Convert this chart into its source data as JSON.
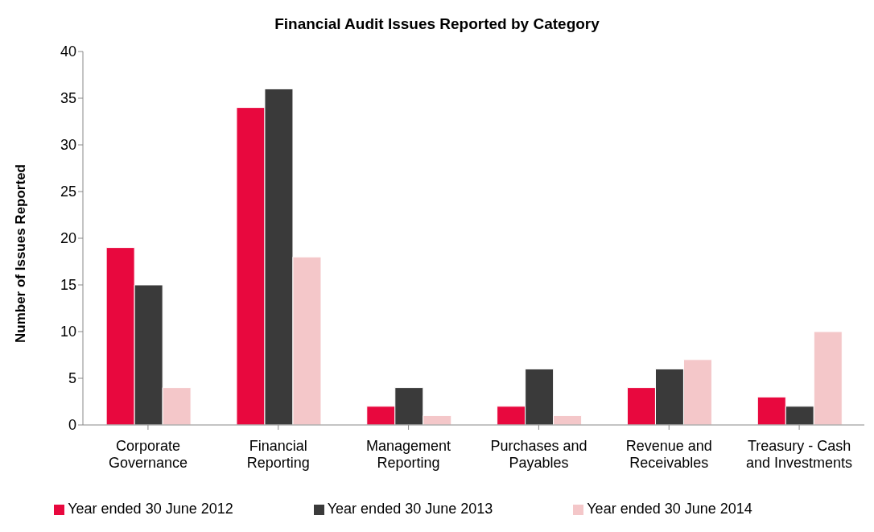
{
  "chart_data": {
    "type": "bar",
    "title": "Financial Audit Issues Reported by Category",
    "ylabel": "Number of Issues Reported",
    "categories": [
      "Corporate Governance",
      "Financial Reporting",
      "Management Reporting",
      "Purchases and Payables",
      "Revenue and Receivables",
      "Treasury - Cash and Investments"
    ],
    "series": [
      {
        "name": "Year ended 30 June 2012",
        "color": "#e8083e",
        "values": [
          19,
          34,
          2,
          2,
          4,
          3
        ]
      },
      {
        "name": "Year ended 30 June 2013",
        "color": "#3a3a3a",
        "values": [
          15,
          36,
          4,
          6,
          6,
          2
        ]
      },
      {
        "name": "Year ended 30 June 2014",
        "color": "#f4c7c9",
        "values": [
          4,
          18,
          1,
          1,
          7,
          10
        ]
      }
    ],
    "ylim": [
      0,
      40
    ],
    "yticks": [
      0,
      5,
      10,
      15,
      20,
      25,
      30,
      35,
      40
    ],
    "grid": false,
    "legend": "bottom"
  }
}
